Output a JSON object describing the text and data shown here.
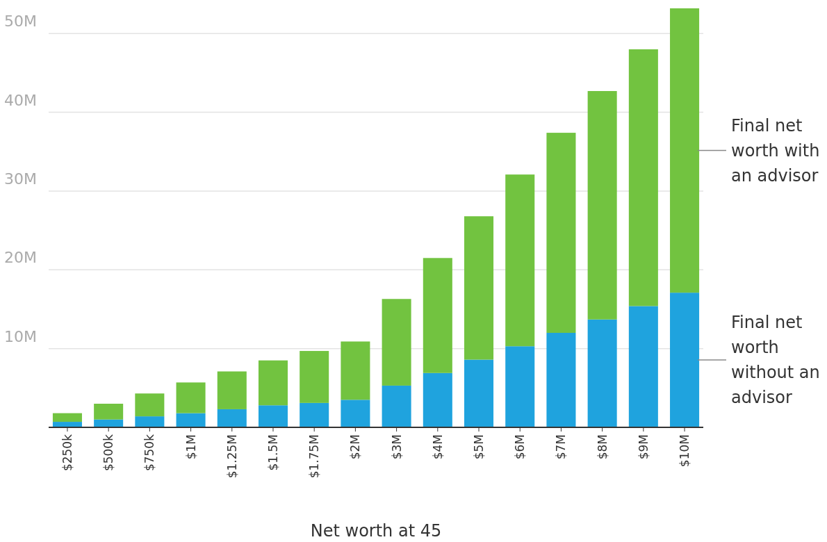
{
  "chart_data": {
    "type": "bar",
    "stacked": true,
    "xlabel": "Net worth at 45",
    "categories": [
      "$250k",
      "$500k",
      "$750k",
      "$1M",
      "$1.25M",
      "$1.5M",
      "$1.75M",
      "$2M",
      "$3M",
      "$4M",
      "$5M",
      "$6M",
      "$7M",
      "$8M",
      "$9M",
      "$10M"
    ],
    "series": [
      {
        "name": "Final net worth without an advisor",
        "color": "#1fa3de",
        "values": [
          0.7,
          1.0,
          1.4,
          1.8,
          2.3,
          2.8,
          3.1,
          3.5,
          5.3,
          6.9,
          8.6,
          10.3,
          12.0,
          13.7,
          15.4,
          17.1
        ]
      },
      {
        "name": "Final net worth with an advisor",
        "color": "#72c340",
        "values": [
          1.1,
          2.0,
          2.9,
          3.9,
          4.8,
          5.7,
          6.6,
          7.4,
          11.0,
          14.6,
          18.2,
          21.8,
          25.4,
          29.0,
          32.6,
          36.1
        ]
      }
    ],
    "ylim": [
      0,
      53.2
    ],
    "yticks": [
      {
        "value": 0,
        "label": null
      },
      {
        "value": 10,
        "label": "10M"
      },
      {
        "value": 20,
        "label": "20M"
      },
      {
        "value": 30,
        "label": "30M"
      },
      {
        "value": 40,
        "label": "40M"
      },
      {
        "value": 50,
        "label": "50M"
      }
    ],
    "grid": "y",
    "legend": "right"
  }
}
